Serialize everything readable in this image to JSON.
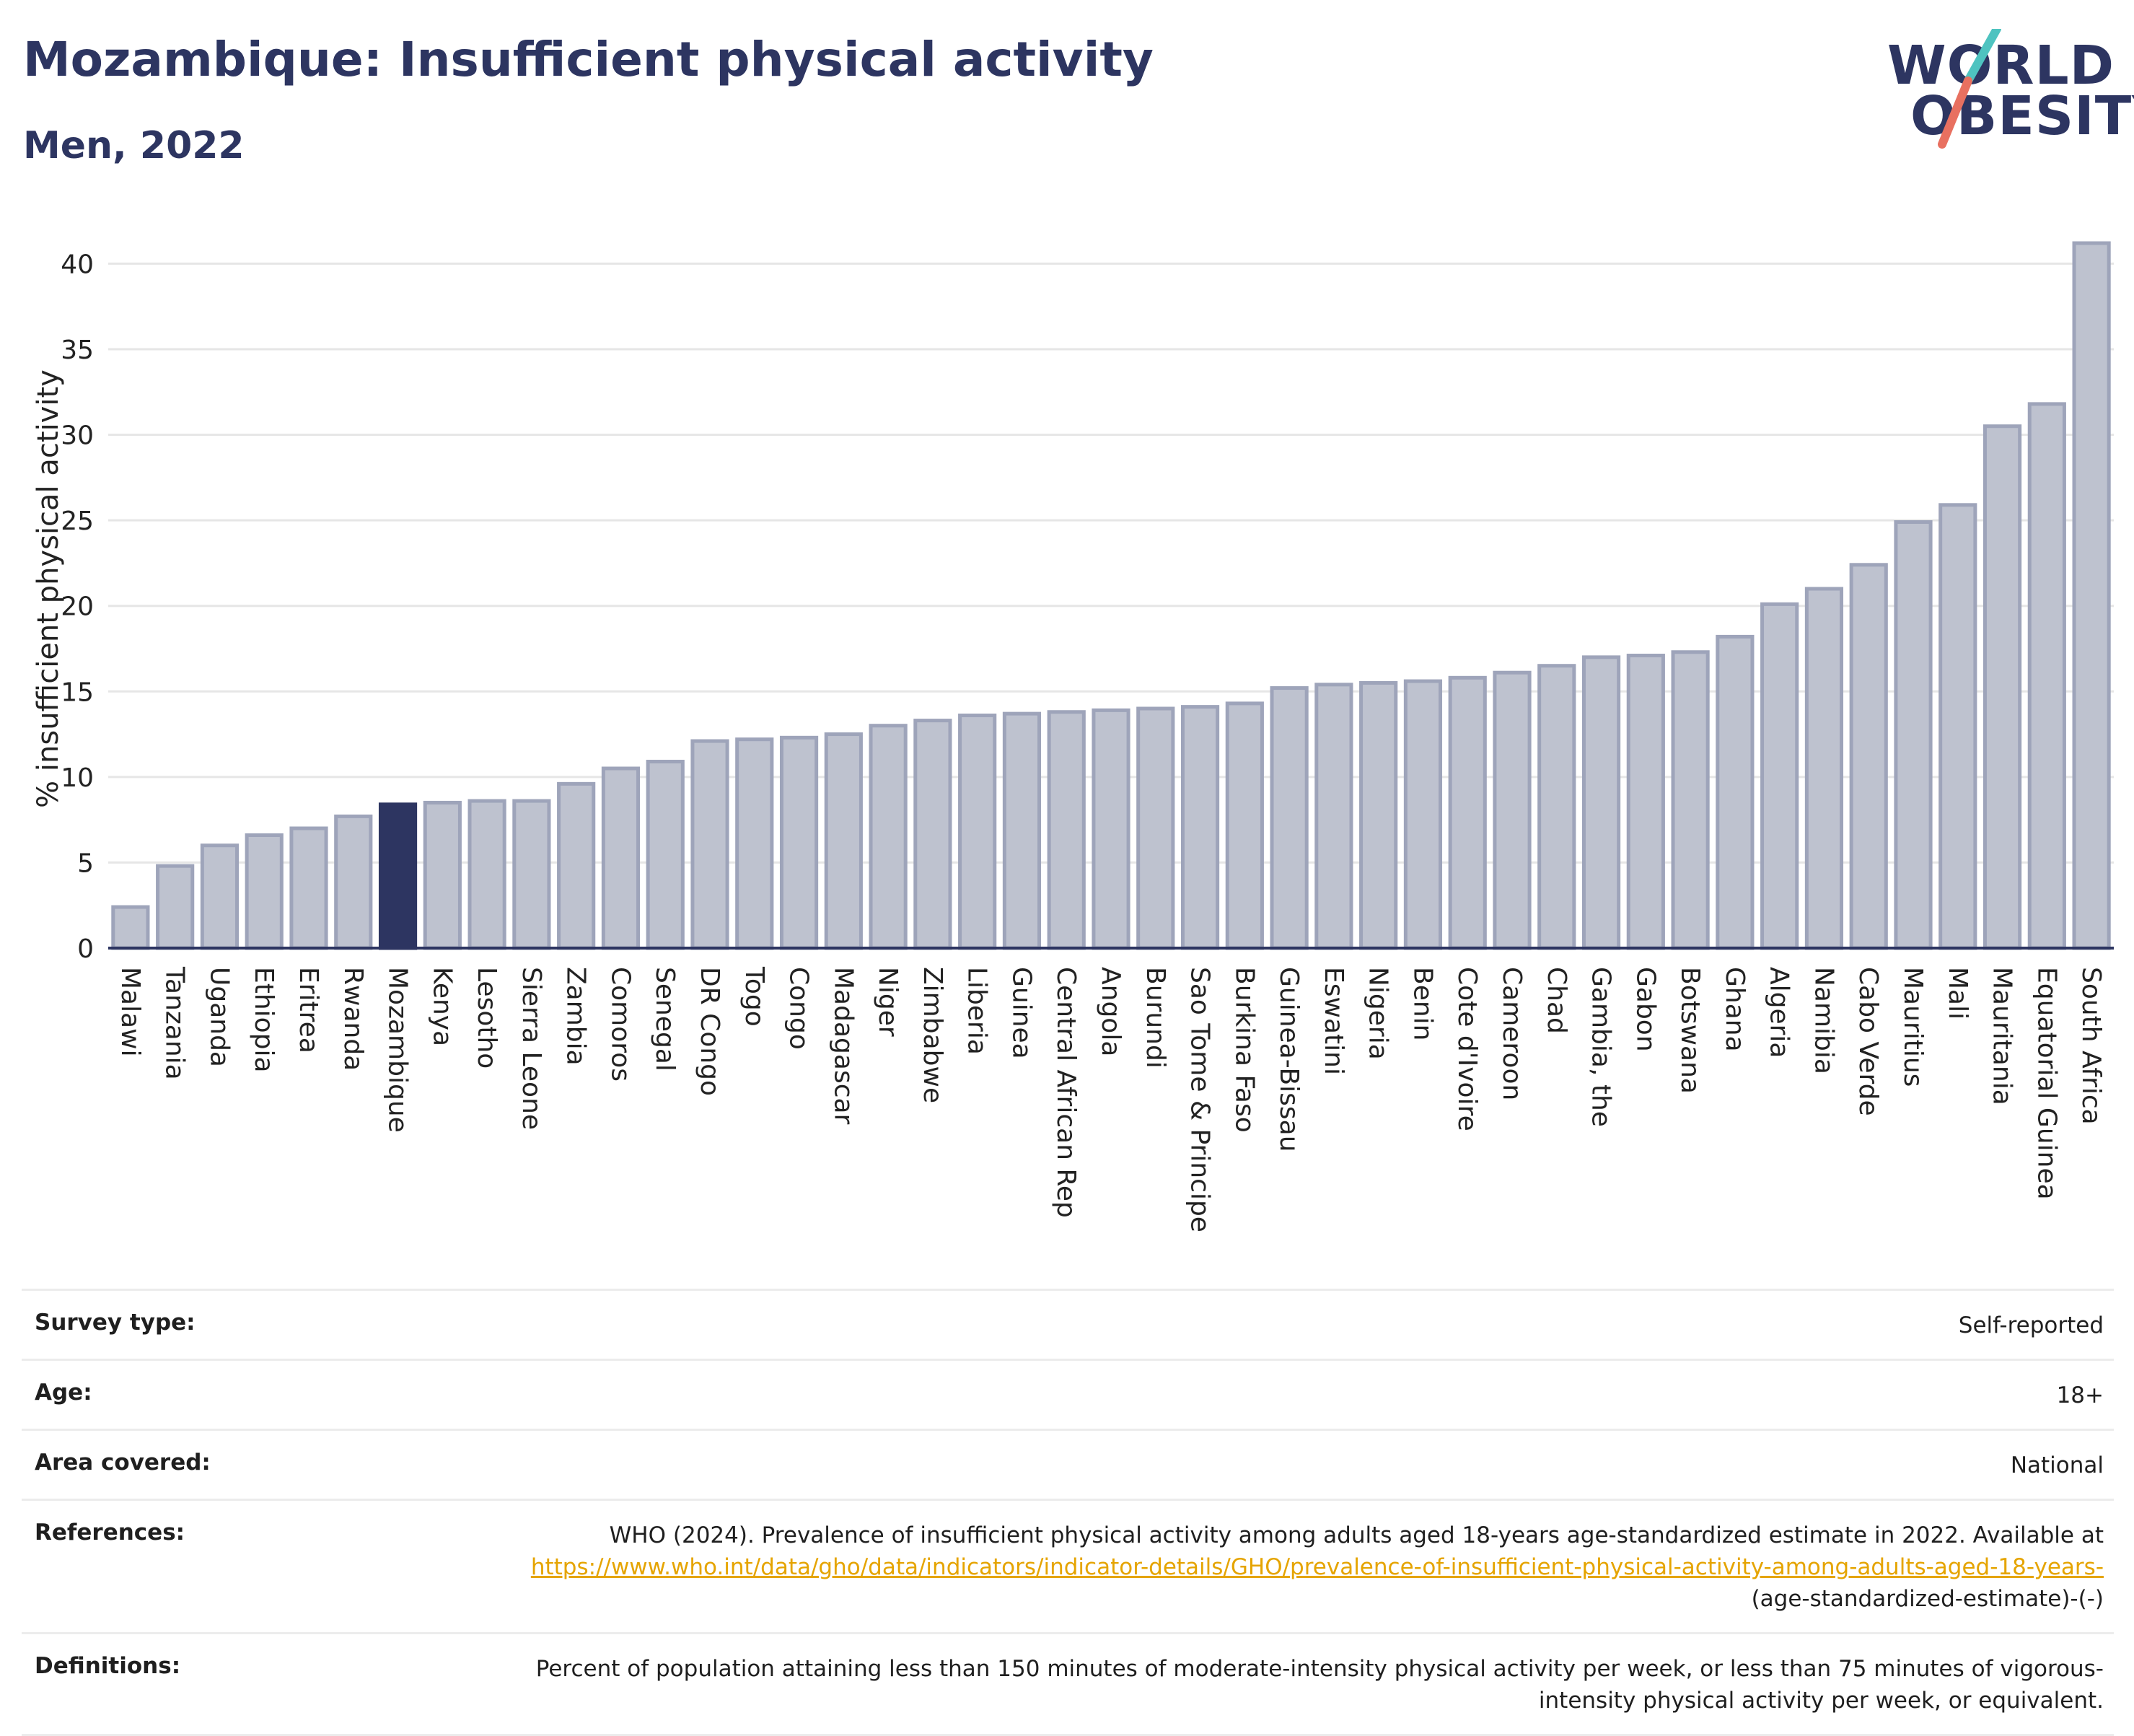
{
  "header": {
    "title": "Mozambique: Insufficient physical activity",
    "subtitle": "Men, 2022",
    "logo_line1": "WORLD",
    "logo_line2": "OBESITY"
  },
  "colors": {
    "bar": "#bec2cf",
    "bar_edge": "#9ea4ba",
    "highlight": "#2d3561",
    "text": "#2d3561",
    "logo_teal": "#4ec3c0",
    "logo_coral": "#e87060",
    "link": "#e5a400"
  },
  "chart_data": {
    "type": "bar",
    "title": "Mozambique: Insufficient physical activity",
    "subtitle": "Men, 2022",
    "xlabel": "",
    "ylabel": "% insufficient physical activity",
    "ylim": [
      0,
      42
    ],
    "yticks": [
      0,
      5,
      10,
      15,
      20,
      25,
      30,
      35,
      40
    ],
    "grid": true,
    "highlight": "Mozambique",
    "categories": [
      "Malawi",
      "Tanzania",
      "Uganda",
      "Ethiopia",
      "Eritrea",
      "Rwanda",
      "Mozambique",
      "Kenya",
      "Lesotho",
      "Sierra Leone",
      "Zambia",
      "Comoros",
      "Senegal",
      "DR Congo",
      "Togo",
      "Congo",
      "Madagascar",
      "Niger",
      "Zimbabwe",
      "Liberia",
      "Guinea",
      "Central African Rep",
      "Angola",
      "Burundi",
      "Sao Tome & Principe",
      "Burkina Faso",
      "Guinea-Bissau",
      "Eswatini",
      "Nigeria",
      "Benin",
      "Cote d'Ivoire",
      "Cameroon",
      "Chad",
      "Gambia, the",
      "Gabon",
      "Botswana",
      "Ghana",
      "Algeria",
      "Namibia",
      "Cabo Verde",
      "Mauritius",
      "Mali",
      "Mauritania",
      "Equatorial Guinea",
      "South Africa"
    ],
    "values": [
      2.4,
      4.8,
      6.0,
      6.6,
      7.0,
      7.7,
      8.4,
      8.5,
      8.6,
      8.6,
      9.6,
      10.5,
      10.9,
      12.1,
      12.2,
      12.3,
      12.5,
      13.0,
      13.3,
      13.6,
      13.7,
      13.8,
      13.9,
      14.0,
      14.1,
      14.3,
      15.2,
      15.4,
      15.5,
      15.6,
      15.8,
      16.1,
      16.5,
      17.0,
      17.1,
      17.3,
      18.2,
      20.1,
      21.0,
      22.4,
      24.9,
      25.9,
      30.5,
      31.8,
      41.2
    ]
  },
  "metadata": {
    "survey_type_label": "Survey type:",
    "survey_type_value": "Self-reported",
    "age_label": "Age:",
    "age_value": "18+",
    "area_label": "Area covered:",
    "area_value": "National",
    "references_label": "References:",
    "references_text": "WHO (2024). Prevalence of insufficient physical activity among adults aged 18-years age-standardized estimate in 2022. Available at",
    "references_link": "https://www.who.int/data/gho/data/indicators/indicator-details/GHO/prevalence-of-insufficient-physical-activity-among-adults-aged-18-years-",
    "references_suffix": "(age-standardized-estimate)-(-)",
    "definitions_label": "Definitions:",
    "definitions_text": "Percent of population attaining less than 150 minutes of moderate-intensity physical activity per week, or less than 75 minutes of vigorous-intensity physical activity per week, or equivalent."
  }
}
